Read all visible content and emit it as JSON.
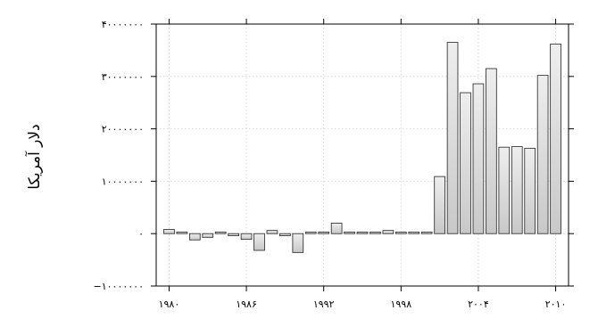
{
  "chart_data": {
    "type": "bar",
    "title": "",
    "xlabel": "",
    "ylabel": "دلار آمریکا",
    "ylim": [
      -10000000,
      40000000
    ],
    "xlim": [
      1979,
      2011
    ],
    "grid": true,
    "legend": "none",
    "y_ticks": [
      -10000000,
      0,
      10000000,
      20000000,
      30000000,
      40000000
    ],
    "y_tick_labels": [
      "−۱۰۰۰۰۰۰۰",
      "۰",
      "۱۰۰۰۰۰۰۰",
      "۲۰۰۰۰۰۰۰",
      "۳۰۰۰۰۰۰۰",
      "۴۰۰۰۰۰۰۰"
    ],
    "x_ticks": [
      1980,
      1986,
      1992,
      1998,
      2004,
      2010
    ],
    "x_tick_labels": [
      "۱۹۸۰",
      "۱۹۸۶",
      "۱۹۹۲",
      "۱۹۹۸",
      "۲۰۰۴",
      "۲۰۱۰"
    ],
    "categories": [
      1980,
      1981,
      1982,
      1983,
      1984,
      1985,
      1986,
      1987,
      1988,
      1989,
      1990,
      1991,
      1992,
      1993,
      1994,
      1995,
      1996,
      1997,
      1998,
      1999,
      2000,
      2001,
      2002,
      2003,
      2004,
      2005,
      2006,
      2007,
      2008,
      2009,
      2010
    ],
    "values": [
      800000,
      300000,
      -1200000,
      -700000,
      300000,
      -400000,
      -1100000,
      -3200000,
      600000,
      -400000,
      -3600000,
      300000,
      300000,
      2000000,
      300000,
      300000,
      300000,
      600000,
      300000,
      300000,
      300000,
      10900000,
      36500000,
      26900000,
      28600000,
      31500000,
      16500000,
      16600000,
      16300000,
      30200000,
      36200000
    ],
    "colors": {
      "bar_top": "#eeeeee",
      "bar_bottom": "#c8c8c8",
      "bar_stroke": "#222222"
    }
  }
}
